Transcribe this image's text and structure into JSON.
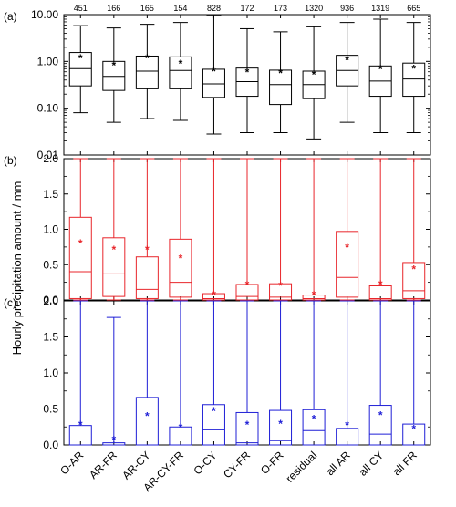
{
  "figure": {
    "ylabel": "Hourly precipitation amount / mm",
    "categories": [
      "O-AR",
      "AR-FR",
      "AR-CY",
      "AR-CY-FR",
      "O-CY",
      "CY-FR",
      "O-FR",
      "residual",
      "all AR",
      "all CY",
      "all FR"
    ],
    "sample_counts": [
      "451",
      "166",
      "165",
      "154",
      "828",
      "172",
      "173",
      "1320",
      "936",
      "1319",
      "665"
    ]
  },
  "chart_data": [
    {
      "type": "box",
      "panel_label": "(a)",
      "color": "#000000",
      "yscale": "log",
      "ylim": [
        0.01,
        10.0
      ],
      "yticks": [
        "10.00",
        "1.00",
        "0.10",
        "0.01"
      ],
      "grid": false,
      "categories": [
        "O-AR",
        "AR-FR",
        "AR-CY",
        "AR-CY-FR",
        "O-CY",
        "CY-FR",
        "O-FR",
        "residual",
        "all AR",
        "all CY",
        "all FR"
      ],
      "boxes": [
        {
          "whisker_low": 0.08,
          "q1": 0.3,
          "median": 0.7,
          "q3": 1.55,
          "whisker_high": 5.8,
          "mean": 1.15
        },
        {
          "whisker_low": 0.05,
          "q1": 0.24,
          "median": 0.48,
          "q3": 1.0,
          "whisker_high": 5.2,
          "mean": 0.82
        },
        {
          "whisker_low": 0.06,
          "q1": 0.26,
          "median": 0.62,
          "q3": 1.3,
          "whisker_high": 6.2,
          "mean": 1.15
        },
        {
          "whisker_low": 0.055,
          "q1": 0.26,
          "median": 0.64,
          "q3": 1.25,
          "whisker_high": 6.8,
          "mean": 0.88
        },
        {
          "whisker_low": 0.028,
          "q1": 0.17,
          "median": 0.33,
          "q3": 0.68,
          "whisker_high": 9.5,
          "mean": 0.6
        },
        {
          "whisker_low": 0.03,
          "q1": 0.18,
          "median": 0.37,
          "q3": 0.72,
          "whisker_high": 5.0,
          "mean": 0.58
        },
        {
          "whisker_low": 0.03,
          "q1": 0.12,
          "median": 0.32,
          "q3": 0.65,
          "whisker_high": 4.3,
          "mean": 0.55
        },
        {
          "whisker_low": 0.022,
          "q1": 0.16,
          "median": 0.32,
          "q3": 0.62,
          "whisker_high": 5.5,
          "mean": 0.52
        },
        {
          "whisker_low": 0.05,
          "q1": 0.3,
          "median": 0.64,
          "q3": 1.35,
          "whisker_high": 6.8,
          "mean": 1.05
        },
        {
          "whisker_low": 0.03,
          "q1": 0.18,
          "median": 0.38,
          "q3": 0.8,
          "whisker_high": 8.0,
          "mean": 0.68
        },
        {
          "whisker_low": 0.03,
          "q1": 0.18,
          "median": 0.42,
          "q3": 0.92,
          "whisker_high": 6.8,
          "mean": 0.7
        }
      ]
    },
    {
      "type": "box",
      "panel_label": "(b)",
      "color": "#e8262b",
      "yscale": "linear",
      "ylim": [
        0.0,
        2.0
      ],
      "yticks": [
        "2.0",
        "1.5",
        "1.0",
        "0.5",
        "0.0"
      ],
      "grid": false,
      "categories": [
        "O-AR",
        "AR-FR",
        "AR-CY",
        "AR-CY-FR",
        "O-CY",
        "CY-FR",
        "O-FR",
        "residual",
        "all AR",
        "all CY",
        "all FR"
      ],
      "boxes": [
        {
          "whisker_low": 0.0,
          "q1": 0.02,
          "median": 0.4,
          "q3": 1.17,
          "whisker_high": 2.0,
          "mean": 0.8
        },
        {
          "whisker_low": 0.0,
          "q1": 0.05,
          "median": 0.37,
          "q3": 0.88,
          "whisker_high": 2.0,
          "mean": 0.71
        },
        {
          "whisker_low": 0.0,
          "q1": 0.02,
          "median": 0.15,
          "q3": 0.61,
          "whisker_high": 2.0,
          "mean": 0.71
        },
        {
          "whisker_low": 0.0,
          "q1": 0.04,
          "median": 0.25,
          "q3": 0.86,
          "whisker_high": 2.0,
          "mean": 0.59
        },
        {
          "whisker_low": 0.0,
          "q1": 0.0,
          "median": 0.02,
          "q3": 0.09,
          "whisker_high": 2.0,
          "mean": 0.07
        },
        {
          "whisker_low": 0.0,
          "q1": 0.0,
          "median": 0.05,
          "q3": 0.22,
          "whisker_high": 2.0,
          "mean": 0.21
        },
        {
          "whisker_low": 0.0,
          "q1": 0.0,
          "median": 0.04,
          "q3": 0.23,
          "whisker_high": 2.0,
          "mean": 0.2
        },
        {
          "whisker_low": 0.0,
          "q1": 0.0,
          "median": 0.02,
          "q3": 0.07,
          "whisker_high": 2.0,
          "mean": 0.07
        },
        {
          "whisker_low": 0.0,
          "q1": 0.04,
          "median": 0.32,
          "q3": 0.97,
          "whisker_high": 2.0,
          "mean": 0.74
        },
        {
          "whisker_low": 0.0,
          "q1": 0.0,
          "median": 0.02,
          "q3": 0.2,
          "whisker_high": 2.0,
          "mean": 0.22
        },
        {
          "whisker_low": 0.0,
          "q1": 0.02,
          "median": 0.13,
          "q3": 0.53,
          "whisker_high": 2.0,
          "mean": 0.43
        }
      ]
    },
    {
      "type": "box",
      "panel_label": "(c)",
      "color": "#1f1fd6",
      "yscale": "linear",
      "ylim": [
        0.0,
        2.0
      ],
      "yticks": [
        "2.0",
        "1.5",
        "1.0",
        "0.5",
        "0.0"
      ],
      "grid": false,
      "categories": [
        "O-AR",
        "AR-FR",
        "AR-CY",
        "AR-CY-FR",
        "O-CY",
        "CY-FR",
        "O-FR",
        "residual",
        "all AR",
        "all CY",
        "all FR"
      ],
      "boxes": [
        {
          "whisker_low": 0.0,
          "q1": 0.0,
          "median": 0.0,
          "q3": 0.27,
          "whisker_high": 2.0,
          "mean": 0.28
        },
        {
          "whisker_low": 0.0,
          "q1": 0.0,
          "median": 0.0,
          "q3": 0.03,
          "whisker_high": 1.77,
          "mean": 0.07
        },
        {
          "whisker_low": 0.0,
          "q1": 0.0,
          "median": 0.07,
          "q3": 0.66,
          "whisker_high": 2.0,
          "mean": 0.4
        },
        {
          "whisker_low": 0.0,
          "q1": 0.0,
          "median": 0.0,
          "q3": 0.25,
          "whisker_high": 2.0,
          "mean": 0.24
        },
        {
          "whisker_low": 0.0,
          "q1": 0.0,
          "median": 0.21,
          "q3": 0.56,
          "whisker_high": 2.0,
          "mean": 0.47
        },
        {
          "whisker_low": 0.0,
          "q1": 0.0,
          "median": 0.03,
          "q3": 0.45,
          "whisker_high": 2.0,
          "mean": 0.28
        },
        {
          "whisker_low": 0.0,
          "q1": 0.0,
          "median": 0.06,
          "q3": 0.48,
          "whisker_high": 2.0,
          "mean": 0.29
        },
        {
          "whisker_low": 0.0,
          "q1": 0.0,
          "median": 0.2,
          "q3": 0.49,
          "whisker_high": 2.0,
          "mean": 0.36
        },
        {
          "whisker_low": 0.0,
          "q1": 0.0,
          "median": 0.0,
          "q3": 0.23,
          "whisker_high": 2.0,
          "mean": 0.27
        },
        {
          "whisker_low": 0.0,
          "q1": 0.0,
          "median": 0.15,
          "q3": 0.55,
          "whisker_high": 2.0,
          "mean": 0.41
        },
        {
          "whisker_low": 0.0,
          "q1": 0.0,
          "median": 0.0,
          "q3": 0.29,
          "whisker_high": 2.0,
          "mean": 0.22
        }
      ]
    }
  ]
}
